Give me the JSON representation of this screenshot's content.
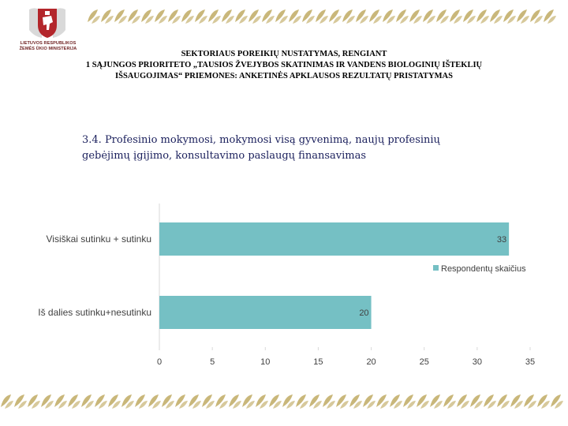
{
  "logo": {
    "org_lines": [
      "LIETUVOS RESPUBLIKOS",
      "ŽEMĖS ŪKIO MINISTERIJA"
    ]
  },
  "header": {
    "lines": [
      "SEKTORIAUS POREIKIŲ NUSTATYMAS, RENGIANT",
      "1 SĄJUNGOS PRIORITETO „TAUSIOS ŽVEJYBOS SKATINIMAS IR VANDENS BIOLOGINIŲ IŠTEKLIŲ",
      "IŠSAUGOJIMAS“ PRIEMONES: ANKETINĖS APKLAUSOS REZULTATŲ PRISTATYMAS"
    ]
  },
  "subtitle": {
    "line1": "3.4. Profesinio mokymosi, mokymosi visą gyvenimą, naujų profesinių",
    "line2": "gebėjimų įgijimo, konsultavimo paslaugų finansavimas"
  },
  "chart_data": {
    "type": "bar",
    "orientation": "horizontal",
    "categories": [
      "Visiškai sutinku + sutinku",
      "Iš dalies sutinku+nesutinku"
    ],
    "series": [
      {
        "name": "Respondentų skaičius",
        "values": [
          33,
          20
        ],
        "color": "#75c0c4"
      }
    ],
    "xlim": [
      0,
      35
    ],
    "xticks": [
      "0",
      "5",
      "10",
      "15",
      "20",
      "25",
      "30",
      "35"
    ],
    "legend": "right",
    "grid": false
  },
  "colors": {
    "bar": "#75c0c4",
    "crest_red": "#b3262b",
    "deco_gold": "#c9b77a",
    "text": "#404040"
  }
}
